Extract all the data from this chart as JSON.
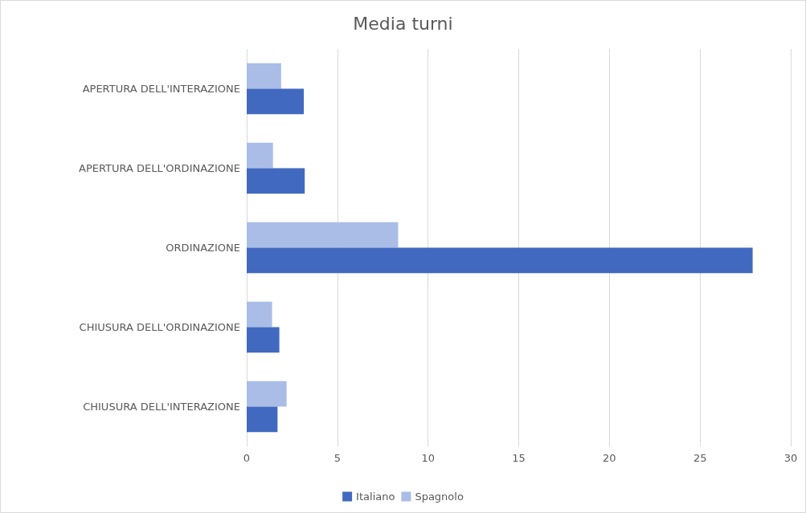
{
  "chart_data": {
    "type": "bar",
    "orientation": "horizontal",
    "title": "Media turni",
    "categories": [
      "APERTURA DELL'INTERAZIONE",
      "APERTURA DELL'ORDINAZIONE",
      "ORDINAZIONE",
      "CHIUSURA DELL'ORDINAZIONE",
      "CHIUSURA DELL'INTERAZIONE"
    ],
    "series": [
      {
        "name": "Italiano",
        "color": "#4169c0",
        "values": [
          3.15,
          3.2,
          27.9,
          1.8,
          1.7
        ]
      },
      {
        "name": "Spagnolo",
        "color": "#a9bde6",
        "values": [
          1.9,
          1.45,
          8.35,
          1.4,
          2.2
        ]
      }
    ],
    "xlim": [
      0,
      30
    ],
    "xticks": [
      0,
      5,
      10,
      15,
      20,
      25,
      30
    ],
    "grid": "x",
    "legend": "bottom"
  }
}
